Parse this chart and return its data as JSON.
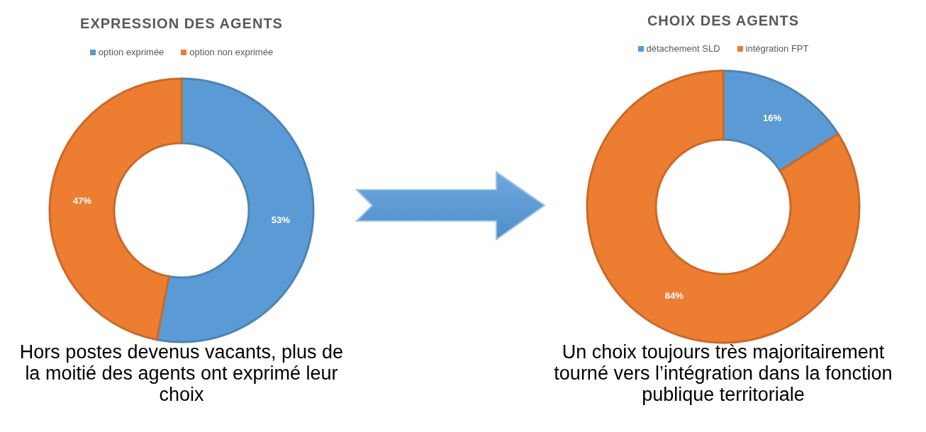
{
  "chart_data": [
    {
      "type": "donut",
      "title": "EXPRESSION DES AGENTS",
      "categories": [
        "option exprimée",
        "option non exprimée"
      ],
      "values": [
        53,
        47
      ],
      "colors": [
        "#5b9bd5",
        "#ed7d31"
      ],
      "value_labels": [
        "53%",
        "47%"
      ],
      "legend": "top",
      "annotations": [
        "Hors postes devenus vacants, plus de la moitié des agents ont exprimé leur choix"
      ]
    },
    {
      "type": "donut",
      "title": "CHOIX DES AGENTS",
      "categories": [
        "détachement SLD",
        "intégration FPT"
      ],
      "values": [
        16,
        84
      ],
      "colors": [
        "#5b9bd5",
        "#ed7d31"
      ],
      "value_labels": [
        "16%",
        "84%"
      ],
      "legend": "top",
      "annotations": [
        "Un choix toujours très majoritairement tourné vers l’intégration dans la fonction publique territoriale"
      ]
    }
  ]
}
